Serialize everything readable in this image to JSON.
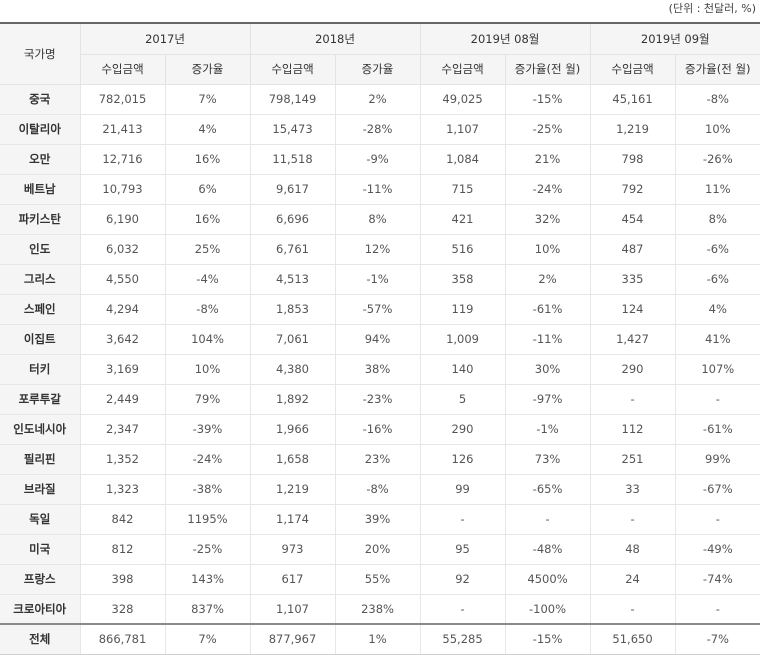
{
  "unit_note": "(단위 : 천달러, %)",
  "header": {
    "country_label": "국가명",
    "periods": [
      "2017년",
      "2018년",
      "2019년 08월",
      "2019년 09월"
    ],
    "sub_labels": [
      "수입금액",
      "증가율",
      "수입금액",
      "증가율",
      "수입금액",
      "증가율(전 월)",
      "수입금액",
      "증가율(전 월)"
    ]
  },
  "rows": [
    {
      "country": "중국",
      "cells": [
        "782,015",
        "7%",
        "798,149",
        "2%",
        "49,025",
        "-15%",
        "45,161",
        "-8%"
      ]
    },
    {
      "country": "이탈리아",
      "cells": [
        "21,413",
        "4%",
        "15,473",
        "-28%",
        "1,107",
        "-25%",
        "1,219",
        "10%"
      ]
    },
    {
      "country": "오만",
      "cells": [
        "12,716",
        "16%",
        "11,518",
        "-9%",
        "1,084",
        "21%",
        "798",
        "-26%"
      ]
    },
    {
      "country": "베트남",
      "cells": [
        "10,793",
        "6%",
        "9,617",
        "-11%",
        "715",
        "-24%",
        "792",
        "11%"
      ]
    },
    {
      "country": "파키스탄",
      "cells": [
        "6,190",
        "16%",
        "6,696",
        "8%",
        "421",
        "32%",
        "454",
        "8%"
      ]
    },
    {
      "country": "인도",
      "cells": [
        "6,032",
        "25%",
        "6,761",
        "12%",
        "516",
        "10%",
        "487",
        "-6%"
      ]
    },
    {
      "country": "그리스",
      "cells": [
        "4,550",
        "-4%",
        "4,513",
        "-1%",
        "358",
        "2%",
        "335",
        "-6%"
      ]
    },
    {
      "country": "스페인",
      "cells": [
        "4,294",
        "-8%",
        "1,853",
        "-57%",
        "119",
        "-61%",
        "124",
        "4%"
      ]
    },
    {
      "country": "이집트",
      "cells": [
        "3,642",
        "104%",
        "7,061",
        "94%",
        "1,009",
        "-11%",
        "1,427",
        "41%"
      ]
    },
    {
      "country": "터키",
      "cells": [
        "3,169",
        "10%",
        "4,380",
        "38%",
        "140",
        "30%",
        "290",
        "107%"
      ]
    },
    {
      "country": "포루투갈",
      "cells": [
        "2,449",
        "79%",
        "1,892",
        "-23%",
        "5",
        "-97%",
        "-",
        "-"
      ]
    },
    {
      "country": "인도네시아",
      "cells": [
        "2,347",
        "-39%",
        "1,966",
        "-16%",
        "290",
        "-1%",
        "112",
        "-61%"
      ]
    },
    {
      "country": "필리핀",
      "cells": [
        "1,352",
        "-24%",
        "1,658",
        "23%",
        "126",
        "73%",
        "251",
        "99%"
      ]
    },
    {
      "country": "브라질",
      "cells": [
        "1,323",
        "-38%",
        "1,219",
        "-8%",
        "99",
        "-65%",
        "33",
        "-67%"
      ]
    },
    {
      "country": "독일",
      "cells": [
        "842",
        "1195%",
        "1,174",
        "39%",
        "-",
        "-",
        "-",
        "-"
      ]
    },
    {
      "country": "미국",
      "cells": [
        "812",
        "-25%",
        "973",
        "20%",
        "95",
        "-48%",
        "48",
        "-49%"
      ]
    },
    {
      "country": "프랑스",
      "cells": [
        "398",
        "143%",
        "617",
        "55%",
        "92",
        "4500%",
        "24",
        "-74%"
      ]
    },
    {
      "country": "크로아티아",
      "cells": [
        "328",
        "837%",
        "1,107",
        "238%",
        "-",
        "-100%",
        "-",
        "-"
      ]
    }
  ],
  "total": {
    "country": "전체",
    "cells": [
      "866,781",
      "7%",
      "877,967",
      "1%",
      "55,285",
      "-15%",
      "51,650",
      "-7%"
    ]
  }
}
